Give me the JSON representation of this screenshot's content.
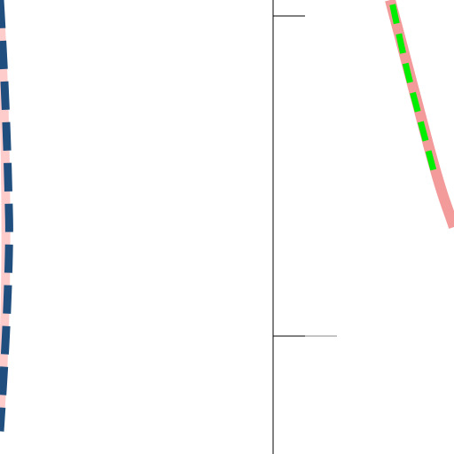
{
  "chart_data": {
    "type": "line",
    "title": "",
    "xlabel": "",
    "ylabel": "",
    "legend": [],
    "axes": {
      "y_axis_visible": true,
      "tick_labels_visible": false,
      "ticks": [
        {
          "name": "upper-tick",
          "length": "short"
        },
        {
          "name": "lower-tick",
          "length": "long"
        }
      ]
    },
    "series": [
      {
        "id": "left-thick-blue-dashed",
        "color": "#1f4e7f",
        "style": "dashed",
        "points": [
          [
            0.0,
            1.0
          ],
          [
            0.2,
            0.85
          ],
          [
            0.35,
            0.7
          ],
          [
            0.45,
            0.55
          ],
          [
            0.48,
            0.5
          ],
          [
            0.45,
            0.42
          ],
          [
            0.35,
            0.3
          ],
          [
            0.2,
            0.18
          ],
          [
            0.0,
            0.05
          ]
        ]
      },
      {
        "id": "left-pink-solid",
        "color": "#ffcccc",
        "style": "solid",
        "points": [
          [
            0.0,
            0.98
          ],
          [
            0.15,
            0.85
          ],
          [
            0.25,
            0.7
          ],
          [
            0.3,
            0.55
          ],
          [
            0.3,
            0.42
          ],
          [
            0.25,
            0.3
          ],
          [
            0.15,
            0.18
          ],
          [
            0.0,
            0.08
          ]
        ]
      },
      {
        "id": "right-salmon-solid",
        "color": "#f39b9b",
        "style": "solid",
        "points": [
          [
            0.0,
            1.0
          ],
          [
            0.3,
            0.8
          ],
          [
            0.6,
            0.6
          ],
          [
            0.8,
            0.5
          ]
        ]
      },
      {
        "id": "right-green-dashed",
        "color": "#00ee00",
        "style": "dashed",
        "points": [
          [
            0.03,
            0.99
          ],
          [
            0.2,
            0.85
          ],
          [
            0.4,
            0.72
          ],
          [
            0.55,
            0.62
          ]
        ]
      }
    ],
    "colors": {
      "axis": "#000000",
      "tick_extra": "#888888"
    }
  }
}
